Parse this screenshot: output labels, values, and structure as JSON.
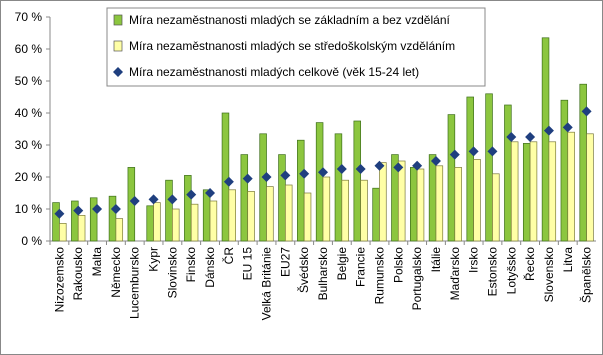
{
  "chart_data": {
    "type": "bar",
    "categories": [
      "Nizozemsko",
      "Rakousko",
      "Malta",
      "Německo",
      "Lucembursko",
      "Kypr",
      "Slovinsko",
      "Finsko",
      "Dánsko",
      "ČR",
      "EU 15",
      "Velká Británie",
      "EU27",
      "Švédsko",
      "Bulharsko",
      "Belgie",
      "Francie",
      "Rumunsko",
      "Polsko",
      "Portugalsko",
      "Itálie",
      "Maďarsko",
      "Irsko",
      "Estonsko",
      "Lotyšsko",
      "Řecko",
      "Slovensko",
      "Litva",
      "Španělsko"
    ],
    "series": [
      {
        "name": "Míra nezaměstnanosti mladých se základním a bez vzdělání",
        "color": "#8cc63f",
        "kind": "bar",
        "values": [
          12,
          12.5,
          13.5,
          14,
          23,
          11,
          19,
          20.5,
          16,
          40,
          27,
          33.5,
          27,
          31.5,
          37,
          33.5,
          37.5,
          16.5,
          27,
          23,
          27,
          39.5,
          45,
          46,
          42.5,
          30.5,
          63.5,
          44,
          49
        ]
      },
      {
        "name": "Míra nezaměstnanosti mladých se středoškolským vzděláním",
        "color": "#ffffa6",
        "kind": "bar",
        "values": [
          5.5,
          8,
          null,
          7,
          null,
          12,
          10,
          11.5,
          12.5,
          16,
          15.5,
          17,
          17.5,
          15,
          20,
          19,
          19,
          24.5,
          25,
          22.5,
          23.5,
          23,
          25.5,
          21,
          31,
          31,
          31,
          34,
          33.5
        ]
      },
      {
        "name": "Míra nezaměstnanosti mladých celkově (věk 15-24 let)",
        "color": "#1f3f7f",
        "kind": "marker",
        "values": [
          8.5,
          9.5,
          10,
          10,
          12.5,
          13,
          13,
          14.5,
          15,
          18.5,
          19.5,
          20,
          20.5,
          21,
          21.5,
          22.5,
          22.5,
          23.5,
          23,
          23.5,
          25,
          27,
          28,
          28,
          32.5,
          32.5,
          34.5,
          35.5,
          40.5
        ]
      }
    ],
    "ylim": [
      0,
      70
    ],
    "yticks": [
      {
        "value": 0,
        "label": "0 %"
      },
      {
        "value": 10,
        "label": "10 %"
      },
      {
        "value": 20,
        "label": "20 %"
      },
      {
        "value": 30,
        "label": "30 %"
      },
      {
        "value": 40,
        "label": "40 %"
      },
      {
        "value": 50,
        "label": "50 %"
      },
      {
        "value": 60,
        "label": "60 %"
      },
      {
        "value": 70,
        "label": "70 %"
      }
    ],
    "grid": false
  }
}
